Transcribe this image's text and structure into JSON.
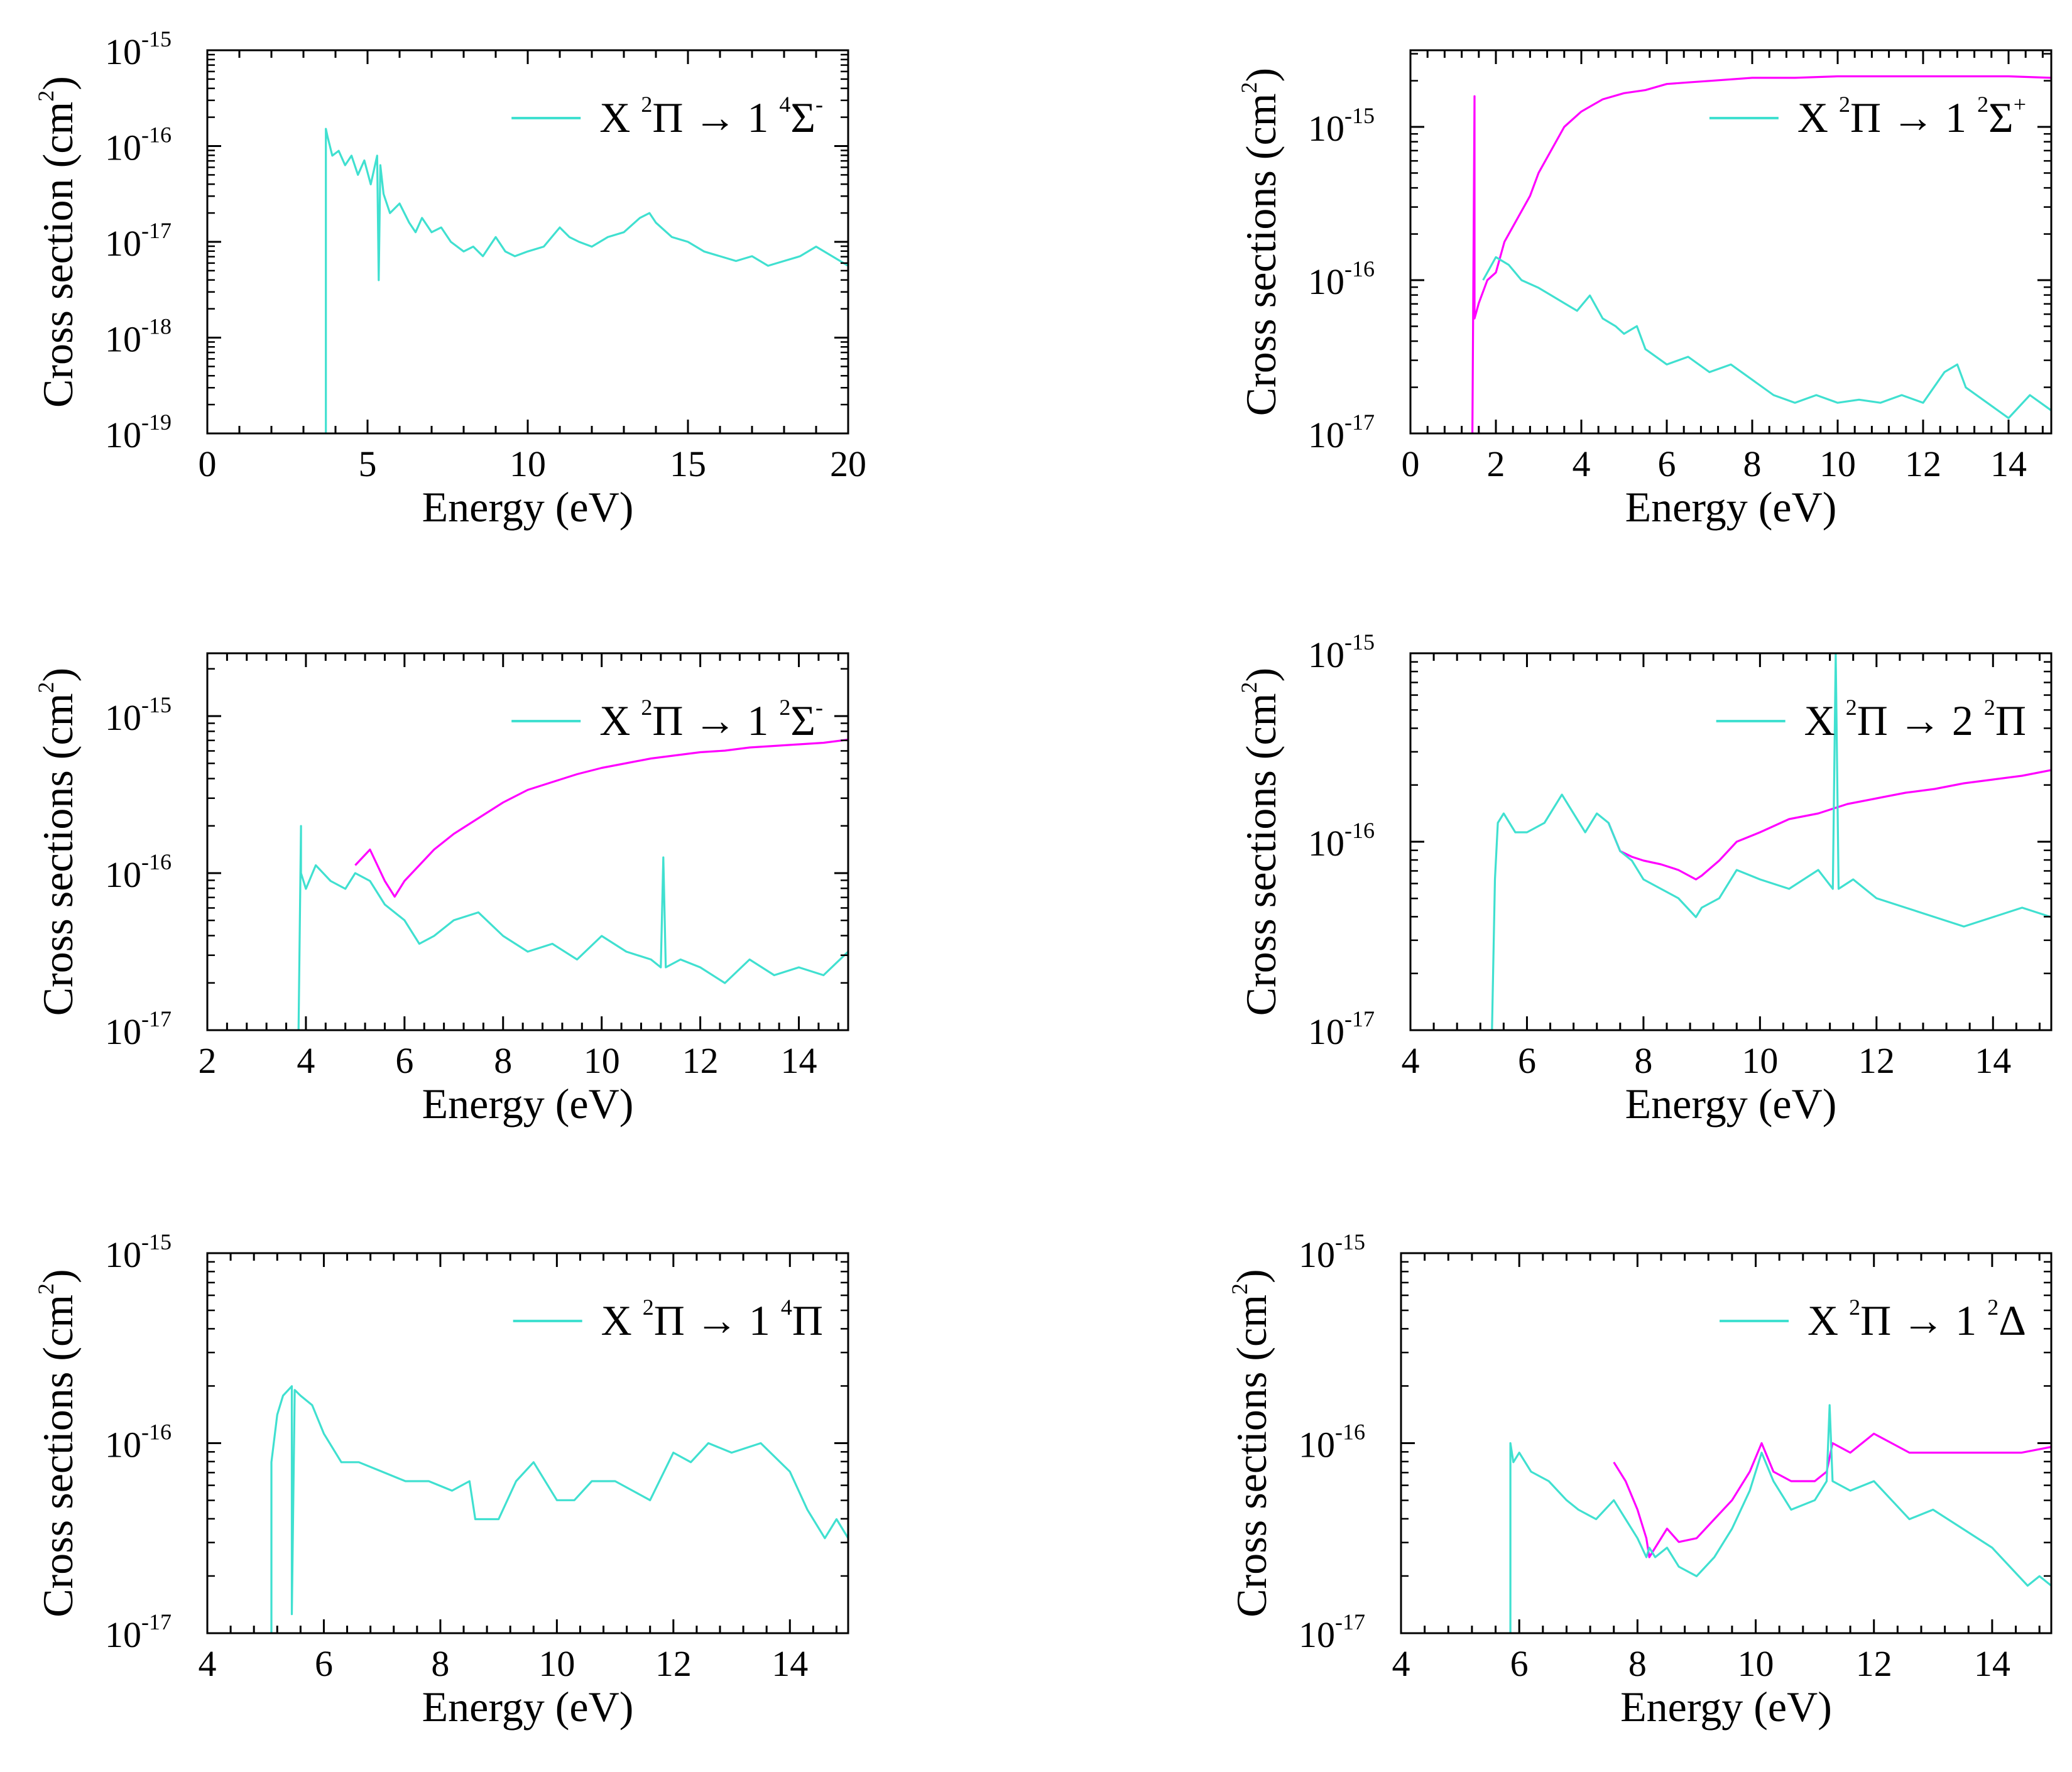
{
  "colors": {
    "total": "#ff00ff",
    "partial": "#40e0d0",
    "axis": "#000000"
  },
  "chart_data": [
    {
      "type": "line",
      "legend": {
        "prefix": "X",
        "s1": "2",
        "l1": "Π",
        "arrow": "→",
        "n": "1",
        "s2": "4",
        "l2": "Σ",
        "s3": "-",
        "position": "top-right"
      },
      "xlabel": "Energy (eV)",
      "ylabel": "Cross section (cm",
      "ylabel_exp": "2",
      "ylabel_close": ")",
      "xlim": [
        0,
        20
      ],
      "ylim_log10": [
        -19,
        -15
      ],
      "xticks": [
        "0",
        "5",
        "10",
        "15",
        "20"
      ],
      "yticks": [
        {
          "base": "10",
          "exp": "-19"
        },
        {
          "base": "10",
          "exp": "-18"
        },
        {
          "base": "10",
          "exp": "-17"
        },
        {
          "base": "10",
          "exp": "-16"
        },
        {
          "base": "10",
          "exp": "-15"
        }
      ],
      "series": [
        {
          "name": "partial",
          "color_key": "partial",
          "x": [
            3.7,
            3.7,
            3.75,
            3.9,
            4.1,
            4.3,
            4.5,
            4.7,
            4.9,
            5.1,
            5.3,
            5.35,
            5.4,
            5.5,
            5.7,
            6.0,
            6.3,
            6.5,
            6.7,
            7.0,
            7.3,
            7.6,
            8.0,
            8.3,
            8.6,
            9.0,
            9.3,
            9.6,
            10.0,
            10.5,
            11.0,
            11.3,
            11.6,
            12.0,
            12.5,
            13.0,
            13.5,
            13.8,
            14.0,
            14.5,
            15.0,
            15.5,
            16.0,
            16.5,
            17.0,
            17.5,
            18.0,
            18.5,
            19.0,
            19.5,
            20.0
          ],
          "log10y": [
            -19,
            -15.82,
            -15.9,
            -16.1,
            -16.05,
            -16.2,
            -16.1,
            -16.3,
            -16.15,
            -16.4,
            -16.1,
            -17.4,
            -16.2,
            -16.5,
            -16.7,
            -16.6,
            -16.8,
            -16.9,
            -16.75,
            -16.9,
            -16.85,
            -17.0,
            -17.1,
            -17.05,
            -17.15,
            -16.95,
            -17.1,
            -17.15,
            -17.1,
            -17.05,
            -16.85,
            -16.95,
            -17.0,
            -17.05,
            -16.95,
            -16.9,
            -16.75,
            -16.7,
            -16.8,
            -16.95,
            -17.0,
            -17.1,
            -17.15,
            -17.2,
            -17.15,
            -17.25,
            -17.2,
            -17.15,
            -17.05,
            -17.15,
            -17.25
          ]
        }
      ]
    },
    {
      "type": "line",
      "legend": {
        "prefix": "X",
        "s1": "2",
        "l1": "Π",
        "arrow": "→",
        "n": "1",
        "s2": "2",
        "l2": "Σ",
        "s3": "+",
        "position": "top-right"
      },
      "xlabel": "Energy (eV)",
      "ylabel": "Cross sections (cm",
      "ylabel_exp": "2",
      "ylabel_close": ")",
      "xlim": [
        0,
        15
      ],
      "ylim_log10": [
        -17,
        -14.5
      ],
      "xticks": [
        "0",
        "2",
        "4",
        "6",
        "8",
        "10",
        "12",
        "14"
      ],
      "yticks": [
        {
          "base": "10",
          "exp": "-17"
        },
        {
          "base": "10",
          "exp": "-16"
        },
        {
          "base": "10",
          "exp": "-15"
        }
      ],
      "series": [
        {
          "name": "total",
          "color_key": "total",
          "x": [
            1.45,
            1.5,
            1.5,
            1.6,
            1.8,
            2.0,
            2.2,
            2.5,
            2.8,
            3.0,
            3.3,
            3.6,
            4.0,
            4.5,
            5.0,
            5.5,
            6.0,
            6.5,
            7.0,
            8.0,
            9.0,
            10.0,
            11.0,
            12.0,
            13.0,
            14.0,
            15.0
          ],
          "log10y": [
            -17,
            -14.8,
            -16.25,
            -16.15,
            -16.0,
            -15.95,
            -15.75,
            -15.6,
            -15.45,
            -15.3,
            -15.15,
            -15.0,
            -14.9,
            -14.82,
            -14.78,
            -14.76,
            -14.72,
            -14.71,
            -14.7,
            -14.68,
            -14.68,
            -14.67,
            -14.67,
            -14.67,
            -14.67,
            -14.67,
            -14.68
          ]
        },
        {
          "name": "partial",
          "color_key": "partial",
          "x": [
            1.7,
            2.0,
            2.3,
            2.6,
            3.0,
            3.3,
            3.6,
            3.9,
            4.2,
            4.5,
            4.8,
            5.0,
            5.3,
            5.5,
            6.0,
            6.5,
            7.0,
            7.5,
            8.0,
            8.5,
            9.0,
            9.5,
            10.0,
            10.5,
            11.0,
            11.5,
            12.0,
            12.5,
            12.8,
            13.0,
            13.5,
            14.0,
            14.5,
            15.0
          ],
          "log10y": [
            -16.0,
            -15.85,
            -15.9,
            -16.0,
            -16.05,
            -16.1,
            -16.15,
            -16.2,
            -16.1,
            -16.25,
            -16.3,
            -16.35,
            -16.3,
            -16.45,
            -16.55,
            -16.5,
            -16.6,
            -16.55,
            -16.65,
            -16.75,
            -16.8,
            -16.75,
            -16.8,
            -16.78,
            -16.8,
            -16.75,
            -16.8,
            -16.6,
            -16.55,
            -16.7,
            -16.8,
            -16.9,
            -16.75,
            -16.85
          ]
        }
      ]
    },
    {
      "type": "line",
      "legend": {
        "prefix": "X",
        "s1": "2",
        "l1": "Π",
        "arrow": "→",
        "n": "1",
        "s2": "2",
        "l2": "Σ",
        "s3": "-",
        "position": "top-right"
      },
      "xlabel": "Energy (eV)",
      "ylabel": "Cross sections (cm",
      "ylabel_exp": "2",
      "ylabel_close": ")",
      "xlim": [
        2,
        15
      ],
      "ylim_log10": [
        -17,
        -14.6
      ],
      "xticks": [
        "2",
        "4",
        "6",
        "8",
        "10",
        "12",
        "14"
      ],
      "yticks": [
        {
          "base": "10",
          "exp": "-17"
        },
        {
          "base": "10",
          "exp": "-16"
        },
        {
          "base": "10",
          "exp": "-15"
        }
      ],
      "series": [
        {
          "name": "total",
          "color_key": "total",
          "x": [
            5.0,
            5.3,
            5.6,
            5.8,
            6.0,
            6.3,
            6.6,
            7.0,
            7.5,
            8.0,
            8.5,
            9.0,
            9.5,
            10.0,
            10.5,
            11.0,
            11.5,
            12.0,
            12.5,
            13.0,
            13.5,
            14.0,
            14.5,
            15.0
          ],
          "log10y": [
            -15.95,
            -15.85,
            -16.05,
            -16.15,
            -16.05,
            -15.95,
            -15.85,
            -15.75,
            -15.65,
            -15.55,
            -15.47,
            -15.42,
            -15.37,
            -15.33,
            -15.3,
            -15.27,
            -15.25,
            -15.23,
            -15.22,
            -15.2,
            -15.19,
            -15.18,
            -15.17,
            -15.15
          ]
        },
        {
          "name": "partial",
          "color_key": "partial",
          "x": [
            3.85,
            3.9,
            3.9,
            4.0,
            4.2,
            4.5,
            4.8,
            5.0,
            5.3,
            5.6,
            6.0,
            6.3,
            6.6,
            7.0,
            7.5,
            8.0,
            8.5,
            9.0,
            9.5,
            10.0,
            10.5,
            11.0,
            11.2,
            11.25,
            11.3,
            11.6,
            12.0,
            12.5,
            13.0,
            13.5,
            14.0,
            14.5,
            15.0
          ],
          "log10y": [
            -17,
            -15.7,
            -16.0,
            -16.1,
            -15.95,
            -16.05,
            -16.1,
            -16.0,
            -16.05,
            -16.2,
            -16.3,
            -16.45,
            -16.4,
            -16.3,
            -16.25,
            -16.4,
            -16.5,
            -16.45,
            -16.55,
            -16.4,
            -16.5,
            -16.55,
            -16.6,
            -15.9,
            -16.6,
            -16.55,
            -16.6,
            -16.7,
            -16.55,
            -16.65,
            -16.6,
            -16.65,
            -16.5
          ]
        }
      ]
    },
    {
      "type": "line",
      "legend": {
        "prefix": "X",
        "s1": "2",
        "l1": "Π",
        "arrow": "→",
        "n": "2",
        "s2": "2",
        "l2": "Π",
        "s3": "",
        "position": "top-right"
      },
      "xlabel": "Energy (eV)",
      "ylabel": "Cross sections (cm",
      "ylabel_exp": "2",
      "ylabel_close": ")",
      "xlim": [
        4,
        15
      ],
      "ylim_log10": [
        -17,
        -15
      ],
      "xticks": [
        "4",
        "6",
        "8",
        "10",
        "12",
        "14"
      ],
      "yticks": [
        {
          "base": "10",
          "exp": "-17"
        },
        {
          "base": "10",
          "exp": "-16"
        },
        {
          "base": "10",
          "exp": "-15"
        }
      ],
      "series": [
        {
          "name": "total",
          "color_key": "total",
          "x": [
            7.4,
            7.6,
            7.8,
            8.0,
            8.3,
            8.6,
            8.9,
            9.0,
            9.3,
            9.6,
            10.0,
            10.5,
            11.0,
            11.5,
            12.0,
            12.5,
            13.0,
            13.5,
            14.0,
            14.5,
            15.0
          ],
          "log10y": [
            -15.9,
            -16.05,
            -16.08,
            -16.1,
            -16.12,
            -16.15,
            -16.2,
            -16.18,
            -16.1,
            -16.0,
            -15.95,
            -15.88,
            -15.85,
            -15.8,
            -15.77,
            -15.74,
            -15.72,
            -15.69,
            -15.67,
            -15.65,
            -15.62
          ]
        },
        {
          "name": "partial",
          "color_key": "partial",
          "x": [
            5.4,
            5.45,
            5.5,
            5.6,
            5.8,
            6.0,
            6.3,
            6.6,
            6.8,
            7.0,
            7.2,
            7.4,
            7.6,
            7.8,
            8.0,
            8.3,
            8.6,
            8.9,
            9.0,
            9.3,
            9.6,
            10.0,
            10.5,
            11.0,
            11.25,
            11.3,
            11.35,
            11.6,
            12.0,
            12.5,
            13.0,
            13.5,
            14.0,
            14.5,
            15.0
          ],
          "log10y": [
            -17,
            -16.2,
            -15.9,
            -15.85,
            -15.95,
            -15.95,
            -15.9,
            -15.75,
            -15.85,
            -15.95,
            -15.85,
            -15.9,
            -16.05,
            -16.1,
            -16.2,
            -16.25,
            -16.3,
            -16.4,
            -16.35,
            -16.3,
            -16.15,
            -16.2,
            -16.25,
            -16.15,
            -16.25,
            -15.0,
            -16.25,
            -16.2,
            -16.3,
            -16.35,
            -16.4,
            -16.45,
            -16.4,
            -16.35,
            -16.4
          ]
        }
      ]
    },
    {
      "type": "line",
      "legend": {
        "prefix": "X",
        "s1": "2",
        "l1": "Π",
        "arrow": "→",
        "n": "1",
        "s2": "4",
        "l2": "Π",
        "s3": "",
        "position": "top-right"
      },
      "xlabel": "Energy (eV)",
      "ylabel": "Cross sections (cm",
      "ylabel_exp": "2",
      "ylabel_close": ")",
      "xlim": [
        4,
        15
      ],
      "ylim_log10": [
        -17,
        -15
      ],
      "xticks": [
        "4",
        "6",
        "8",
        "10",
        "12",
        "14"
      ],
      "yticks": [
        {
          "base": "10",
          "exp": "-17"
        },
        {
          "base": "10",
          "exp": "-16"
        },
        {
          "base": "10",
          "exp": "-15"
        }
      ],
      "series": [
        {
          "name": "partial",
          "color_key": "partial",
          "x": [
            5.1,
            5.1,
            5.2,
            5.3,
            5.45,
            5.45,
            5.5,
            5.6,
            5.8,
            6.0,
            6.3,
            6.6,
            7.0,
            7.4,
            7.8,
            8.2,
            8.5,
            8.6,
            9.0,
            9.3,
            9.6,
            10.0,
            10.3,
            10.6,
            11.0,
            11.3,
            11.6,
            12.0,
            12.3,
            12.6,
            13.0,
            13.5,
            14.0,
            14.3,
            14.6,
            14.8,
            15.0
          ],
          "log10y": [
            -17,
            -16.1,
            -15.85,
            -15.75,
            -15.7,
            -16.9,
            -15.72,
            -15.75,
            -15.8,
            -15.95,
            -16.1,
            -16.1,
            -16.15,
            -16.2,
            -16.2,
            -16.25,
            -16.2,
            -16.4,
            -16.4,
            -16.2,
            -16.1,
            -16.3,
            -16.3,
            -16.2,
            -16.2,
            -16.25,
            -16.3,
            -16.05,
            -16.1,
            -16.0,
            -16.05,
            -16.0,
            -16.15,
            -16.35,
            -16.5,
            -16.4,
            -16.5
          ]
        }
      ]
    },
    {
      "type": "line",
      "legend": {
        "prefix": "X",
        "s1": "2",
        "l1": "Π",
        "arrow": "→",
        "n": "1",
        "s2": "2",
        "l2": "Δ",
        "s3": "",
        "position": "top-right"
      },
      "xlabel": "Energy (eV)",
      "ylabel": "Cross sections (cm",
      "ylabel_exp": "2",
      "ylabel_close": ")",
      "xlim": [
        4,
        15
      ],
      "ylim_log10": [
        -17,
        -15
      ],
      "xticks": [
        "4",
        "6",
        "8",
        "10",
        "12",
        "14"
      ],
      "yticks": [
        {
          "base": "10",
          "exp": "-17"
        },
        {
          "base": "10",
          "exp": "-16"
        },
        {
          "base": "10",
          "exp": "-15"
        }
      ],
      "series": [
        {
          "name": "total",
          "color_key": "total",
          "x": [
            7.6,
            7.8,
            8.0,
            8.15,
            8.2,
            8.3,
            8.5,
            8.7,
            9.0,
            9.3,
            9.6,
            9.9,
            10.1,
            10.3,
            10.6,
            11.0,
            11.2,
            11.3,
            11.6,
            12.0,
            12.3,
            12.6,
            13.0,
            13.5,
            14.0,
            14.5,
            15.0
          ],
          "log10y": [
            -16.1,
            -16.2,
            -16.35,
            -16.5,
            -16.6,
            -16.55,
            -16.45,
            -16.52,
            -16.5,
            -16.4,
            -16.3,
            -16.15,
            -16.0,
            -16.15,
            -16.2,
            -16.2,
            -16.15,
            -16.0,
            -16.05,
            -15.95,
            -16.0,
            -16.05,
            -16.05,
            -16.05,
            -16.05,
            -16.05,
            -16.02
          ]
        },
        {
          "name": "partial",
          "color_key": "partial",
          "x": [
            5.85,
            5.85,
            5.9,
            6.0,
            6.2,
            6.5,
            6.8,
            7.0,
            7.3,
            7.6,
            7.8,
            8.0,
            8.15,
            8.2,
            8.3,
            8.5,
            8.7,
            9.0,
            9.3,
            9.6,
            9.9,
            10.1,
            10.3,
            10.6,
            11.0,
            11.2,
            11.25,
            11.3,
            11.6,
            12.0,
            12.3,
            12.6,
            13.0,
            13.5,
            14.0,
            14.3,
            14.6,
            14.8,
            15.0
          ],
          "log10y": [
            -17,
            -16.0,
            -16.1,
            -16.05,
            -16.15,
            -16.2,
            -16.3,
            -16.35,
            -16.4,
            -16.3,
            -16.4,
            -16.5,
            -16.6,
            -16.55,
            -16.6,
            -16.55,
            -16.65,
            -16.7,
            -16.6,
            -16.45,
            -16.25,
            -16.05,
            -16.2,
            -16.35,
            -16.3,
            -16.2,
            -15.8,
            -16.2,
            -16.25,
            -16.2,
            -16.3,
            -16.4,
            -16.35,
            -16.45,
            -16.55,
            -16.65,
            -16.75,
            -16.7,
            -16.75
          ]
        }
      ]
    }
  ]
}
